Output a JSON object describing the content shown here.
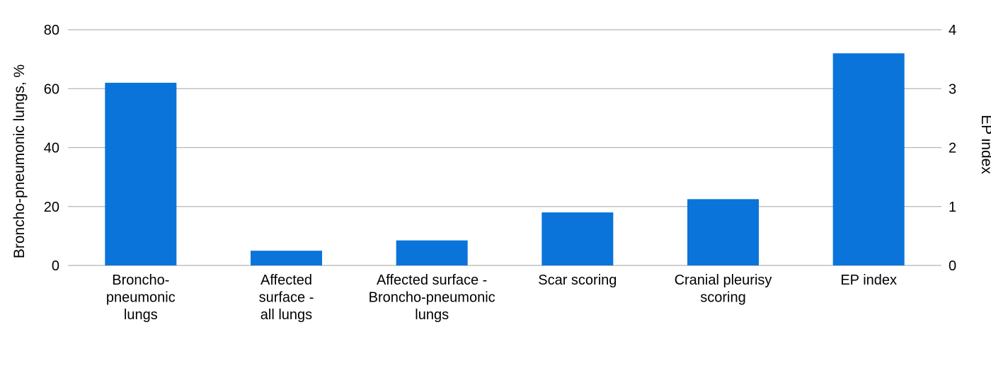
{
  "chart_data": {
    "type": "bar",
    "categories": [
      [
        "Broncho-",
        "pneumonic",
        "lungs"
      ],
      [
        "Affected",
        "surface -",
        "all lungs"
      ],
      [
        "Affected surface -",
        "Broncho-pneumonic",
        "lungs"
      ],
      [
        "Scar scoring"
      ],
      [
        "Cranial pleurisy",
        "scoring"
      ],
      [
        "EP index"
      ]
    ],
    "series": [
      {
        "values": [
          62,
          5,
          8.5,
          18,
          22.5,
          3.6
        ],
        "axis": [
          "left",
          "left",
          "left",
          "left",
          "left",
          "right"
        ],
        "color": "#0a74da"
      }
    ],
    "ylabel": "Broncho-pneumonic lungs, %",
    "ylim": [
      0,
      80
    ],
    "yticks": [
      "0",
      "20",
      "40",
      "60",
      "80"
    ],
    "y2label": "EP index",
    "y2lim": [
      0,
      4
    ],
    "y2ticks": [
      "0",
      "1",
      "2",
      "3",
      "4"
    ],
    "grid": true,
    "legend": "none"
  }
}
